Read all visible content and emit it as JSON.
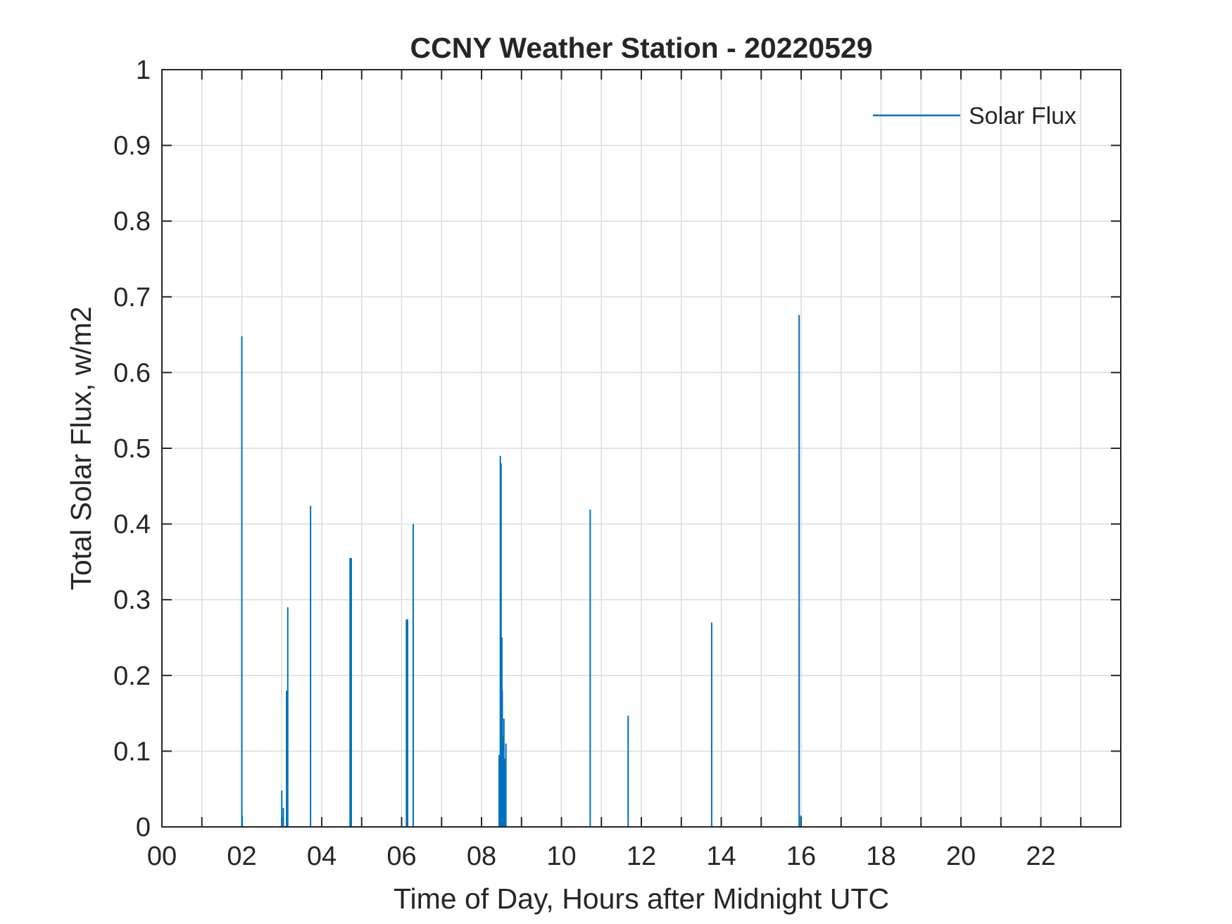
{
  "chart_data": {
    "type": "line",
    "title": "CCNY Weather Station - 20220529",
    "xlabel": "Time of Day, Hours after Midnight UTC",
    "ylabel": "Total Solar Flux, w/m2",
    "xlim": [
      0,
      24
    ],
    "ylim": [
      0,
      1
    ],
    "x_ticks": [
      0,
      2,
      4,
      6,
      8,
      10,
      12,
      14,
      16,
      18,
      20,
      22
    ],
    "x_tick_labels": [
      "00",
      "02",
      "04",
      "06",
      "08",
      "10",
      "12",
      "14",
      "16",
      "18",
      "20",
      "22"
    ],
    "x_minor_gridlines_every": 1,
    "y_ticks": [
      0,
      0.1,
      0.2,
      0.3,
      0.4,
      0.5,
      0.6,
      0.7,
      0.8,
      0.9,
      1
    ],
    "y_tick_labels": [
      "0",
      "0.1",
      "0.2",
      "0.3",
      "0.4",
      "0.5",
      "0.6",
      "0.7",
      "0.8",
      "0.9",
      "1"
    ],
    "grid": true,
    "legend": "top-right",
    "series": [
      {
        "name": "Solar Flux",
        "color": "#0072BD",
        "spikes": [
          {
            "x": 2.0,
            "y": 0.648
          },
          {
            "x": 2.01,
            "y": 0.015
          },
          {
            "x": 3.0,
            "y": 0.048
          },
          {
            "x": 3.04,
            "y": 0.025
          },
          {
            "x": 3.12,
            "y": 0.18
          },
          {
            "x": 3.15,
            "y": 0.29
          },
          {
            "x": 3.72,
            "y": 0.424
          },
          {
            "x": 4.71,
            "y": 0.355
          },
          {
            "x": 4.74,
            "y": 0.355
          },
          {
            "x": 6.12,
            "y": 0.274
          },
          {
            "x": 6.15,
            "y": 0.274
          },
          {
            "x": 6.29,
            "y": 0.4
          },
          {
            "x": 8.44,
            "y": 0.095
          },
          {
            "x": 8.47,
            "y": 0.49
          },
          {
            "x": 8.49,
            "y": 0.48
          },
          {
            "x": 8.51,
            "y": 0.25
          },
          {
            "x": 8.52,
            "y": 0.18
          },
          {
            "x": 8.54,
            "y": 0.12
          },
          {
            "x": 8.56,
            "y": 0.143
          },
          {
            "x": 8.59,
            "y": 0.09
          },
          {
            "x": 8.61,
            "y": 0.11
          },
          {
            "x": 10.72,
            "y": 0.419
          },
          {
            "x": 11.67,
            "y": 0.147
          },
          {
            "x": 13.76,
            "y": 0.27
          },
          {
            "x": 15.95,
            "y": 0.676
          },
          {
            "x": 15.99,
            "y": 0.015
          }
        ]
      }
    ]
  }
}
